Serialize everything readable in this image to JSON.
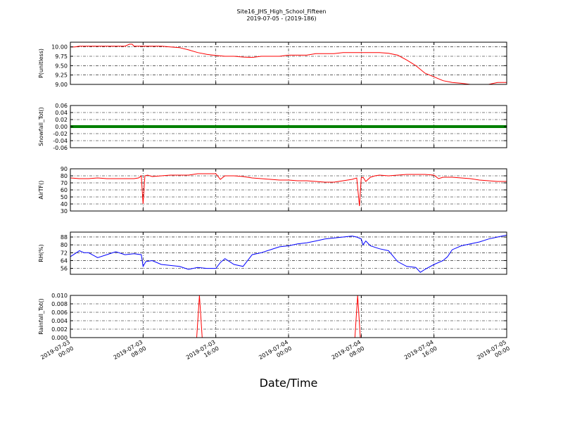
{
  "title_line1": "Site16_JHS_High_School_Fifteen",
  "title_line2": "2019-07-05 - (2019-186)",
  "xlabel": "Date/Time",
  "chart_data": [
    {
      "type": "line",
      "ylabel": "P(unitless)",
      "ylim": [
        9.0,
        10.125
      ],
      "yticks": [
        "9.00",
        "9.25",
        "9.50",
        "9.75",
        "10.00"
      ],
      "ytick_values": [
        9.0,
        9.25,
        9.5,
        9.75,
        10.0
      ],
      "grid": true,
      "series": [
        {
          "color": "#ff0000",
          "x": [
            0,
            0.5,
            1,
            2,
            3,
            4,
            5,
            6,
            6.5,
            6.8,
            7,
            7.5,
            8,
            9,
            10,
            11,
            12,
            13,
            14,
            15,
            16,
            17,
            18,
            19,
            20,
            21,
            22,
            23,
            24,
            25,
            26,
            27,
            28,
            29,
            30,
            31,
            32,
            33,
            34,
            35,
            36,
            37,
            38,
            39,
            40,
            41,
            42,
            43,
            44,
            45,
            46,
            47,
            48
          ],
          "y": [
            10.0,
            10.0,
            10.02,
            10.02,
            10.02,
            10.02,
            10.02,
            10.02,
            10.07,
            10.07,
            10.02,
            10.02,
            10.02,
            10.02,
            10.02,
            10.0,
            9.98,
            9.92,
            9.85,
            9.8,
            9.77,
            9.75,
            9.75,
            9.73,
            9.72,
            9.75,
            9.75,
            9.75,
            9.78,
            9.78,
            9.78,
            9.82,
            9.82,
            9.82,
            9.85,
            9.85,
            9.85,
            9.85,
            9.85,
            9.83,
            9.78,
            9.65,
            9.5,
            9.3,
            9.2,
            9.1,
            9.05,
            9.03,
            9.0,
            9.0,
            9.0,
            9.05,
            9.05
          ]
        }
      ]
    },
    {
      "type": "scatter",
      "ylabel": "Snowfall_Tot()",
      "ylim": [
        -0.06,
        0.06
      ],
      "yticks": [
        "-0.06",
        "-0.04",
        "-0.02",
        "0.00",
        "0.02",
        "0.04",
        "0.06"
      ],
      "ytick_values": [
        -0.06,
        -0.04,
        -0.02,
        0.0,
        0.02,
        0.04,
        0.06
      ],
      "grid": true,
      "series": [
        {
          "color": "#008000",
          "constant": 0.0
        }
      ]
    },
    {
      "type": "line",
      "ylabel": "AirTF()",
      "ylim": [
        30,
        90
      ],
      "yticks": [
        "30",
        "40",
        "50",
        "60",
        "70",
        "80",
        "90"
      ],
      "ytick_values": [
        30,
        40,
        50,
        60,
        70,
        80,
        90
      ],
      "grid": true,
      "series": [
        {
          "color": "#ff0000",
          "x": [
            0,
            1,
            2,
            3,
            4,
            5,
            6,
            7,
            7.5,
            7.8,
            8.0,
            8.2,
            8.5,
            9,
            10,
            11,
            12,
            13,
            14,
            15,
            15.5,
            16,
            16.5,
            17,
            17.5,
            18,
            19,
            20,
            21,
            22,
            23,
            24,
            25,
            26,
            27,
            28,
            29,
            30,
            31,
            31.5,
            31.8,
            32.0,
            32.2,
            32.5,
            33,
            33.5,
            34,
            35,
            36,
            37,
            38,
            39,
            40,
            40.5,
            41,
            42,
            43,
            44,
            45,
            46,
            47,
            48
          ],
          "y": [
            77,
            76,
            76,
            77,
            76,
            76,
            76,
            76,
            77,
            80,
            40,
            80,
            81,
            79,
            80,
            81,
            81,
            81,
            83,
            83,
            83,
            83,
            75,
            80,
            80,
            80,
            79,
            77,
            76,
            75,
            74,
            74,
            73,
            73,
            72,
            71,
            71,
            73,
            75,
            77,
            37,
            77,
            78,
            72,
            78,
            80,
            81,
            80,
            81,
            82,
            82,
            82,
            81,
            76,
            78,
            78,
            77,
            76,
            74,
            73,
            72,
            72
          ]
        }
      ]
    },
    {
      "type": "line",
      "ylabel": "RH(%)",
      "ylim": [
        50,
        93
      ],
      "yticks": [
        "56",
        "64",
        "72",
        "80",
        "88"
      ],
      "ytick_values": [
        56,
        64,
        72,
        80,
        88
      ],
      "grid": true,
      "series": [
        {
          "color": "#0000ff",
          "x": [
            0,
            0.5,
            1,
            1.5,
            2,
            3,
            4,
            5,
            6,
            7,
            7.8,
            8.0,
            8.3,
            9,
            10,
            11,
            12,
            13,
            14,
            15,
            16,
            16.5,
            17,
            18,
            19,
            20,
            21,
            22,
            23,
            24,
            25,
            26,
            27,
            28,
            29,
            30,
            31,
            31.5,
            32,
            32.2,
            32.5,
            33,
            34,
            35,
            36,
            37,
            38,
            38.5,
            39,
            40,
            41,
            41.5,
            42,
            43,
            44,
            45,
            46,
            47,
            48
          ],
          "y": [
            68,
            71,
            74,
            72,
            72,
            67,
            70,
            73,
            70,
            71,
            70,
            58,
            63,
            64,
            60,
            59,
            58,
            55,
            57,
            56,
            56,
            62,
            66,
            60,
            58,
            70,
            72,
            75,
            78,
            79,
            81,
            82,
            84,
            86,
            87,
            88,
            89,
            88,
            86,
            80,
            84,
            79,
            76,
            74,
            63,
            58,
            57,
            52,
            55,
            60,
            64,
            68,
            75,
            79,
            81,
            83,
            86,
            88,
            90
          ]
        }
      ]
    },
    {
      "type": "line",
      "ylabel": "Rainfall_Tot()",
      "ylim": [
        0.0,
        0.01
      ],
      "yticks": [
        "0.000",
        "0.002",
        "0.004",
        "0.006",
        "0.008",
        "0.010"
      ],
      "ytick_values": [
        0.0,
        0.002,
        0.004,
        0.006,
        0.008,
        0.01
      ],
      "grid": true,
      "series": [
        {
          "color": "#ff0000",
          "x": [
            0,
            13.9,
            14.2,
            14.5,
            31.3,
            31.6,
            31.9,
            48
          ],
          "y": [
            0,
            0,
            0.01,
            0,
            0,
            0.01,
            0,
            0
          ]
        }
      ]
    }
  ],
  "x_axis": {
    "range_hours": [
      0,
      48
    ],
    "tick_hours": [
      0,
      8,
      16,
      24,
      32,
      40,
      48
    ],
    "tick_labels": [
      [
        "2019-07-03",
        "00:00"
      ],
      [
        "2019-07-03",
        "08:00"
      ],
      [
        "2019-07-03",
        "16:00"
      ],
      [
        "2019-07-04",
        "00:00"
      ],
      [
        "2019-07-04",
        "08:00"
      ],
      [
        "2019-07-04",
        "16:00"
      ],
      [
        "2019-07-05",
        "00:00"
      ]
    ]
  }
}
